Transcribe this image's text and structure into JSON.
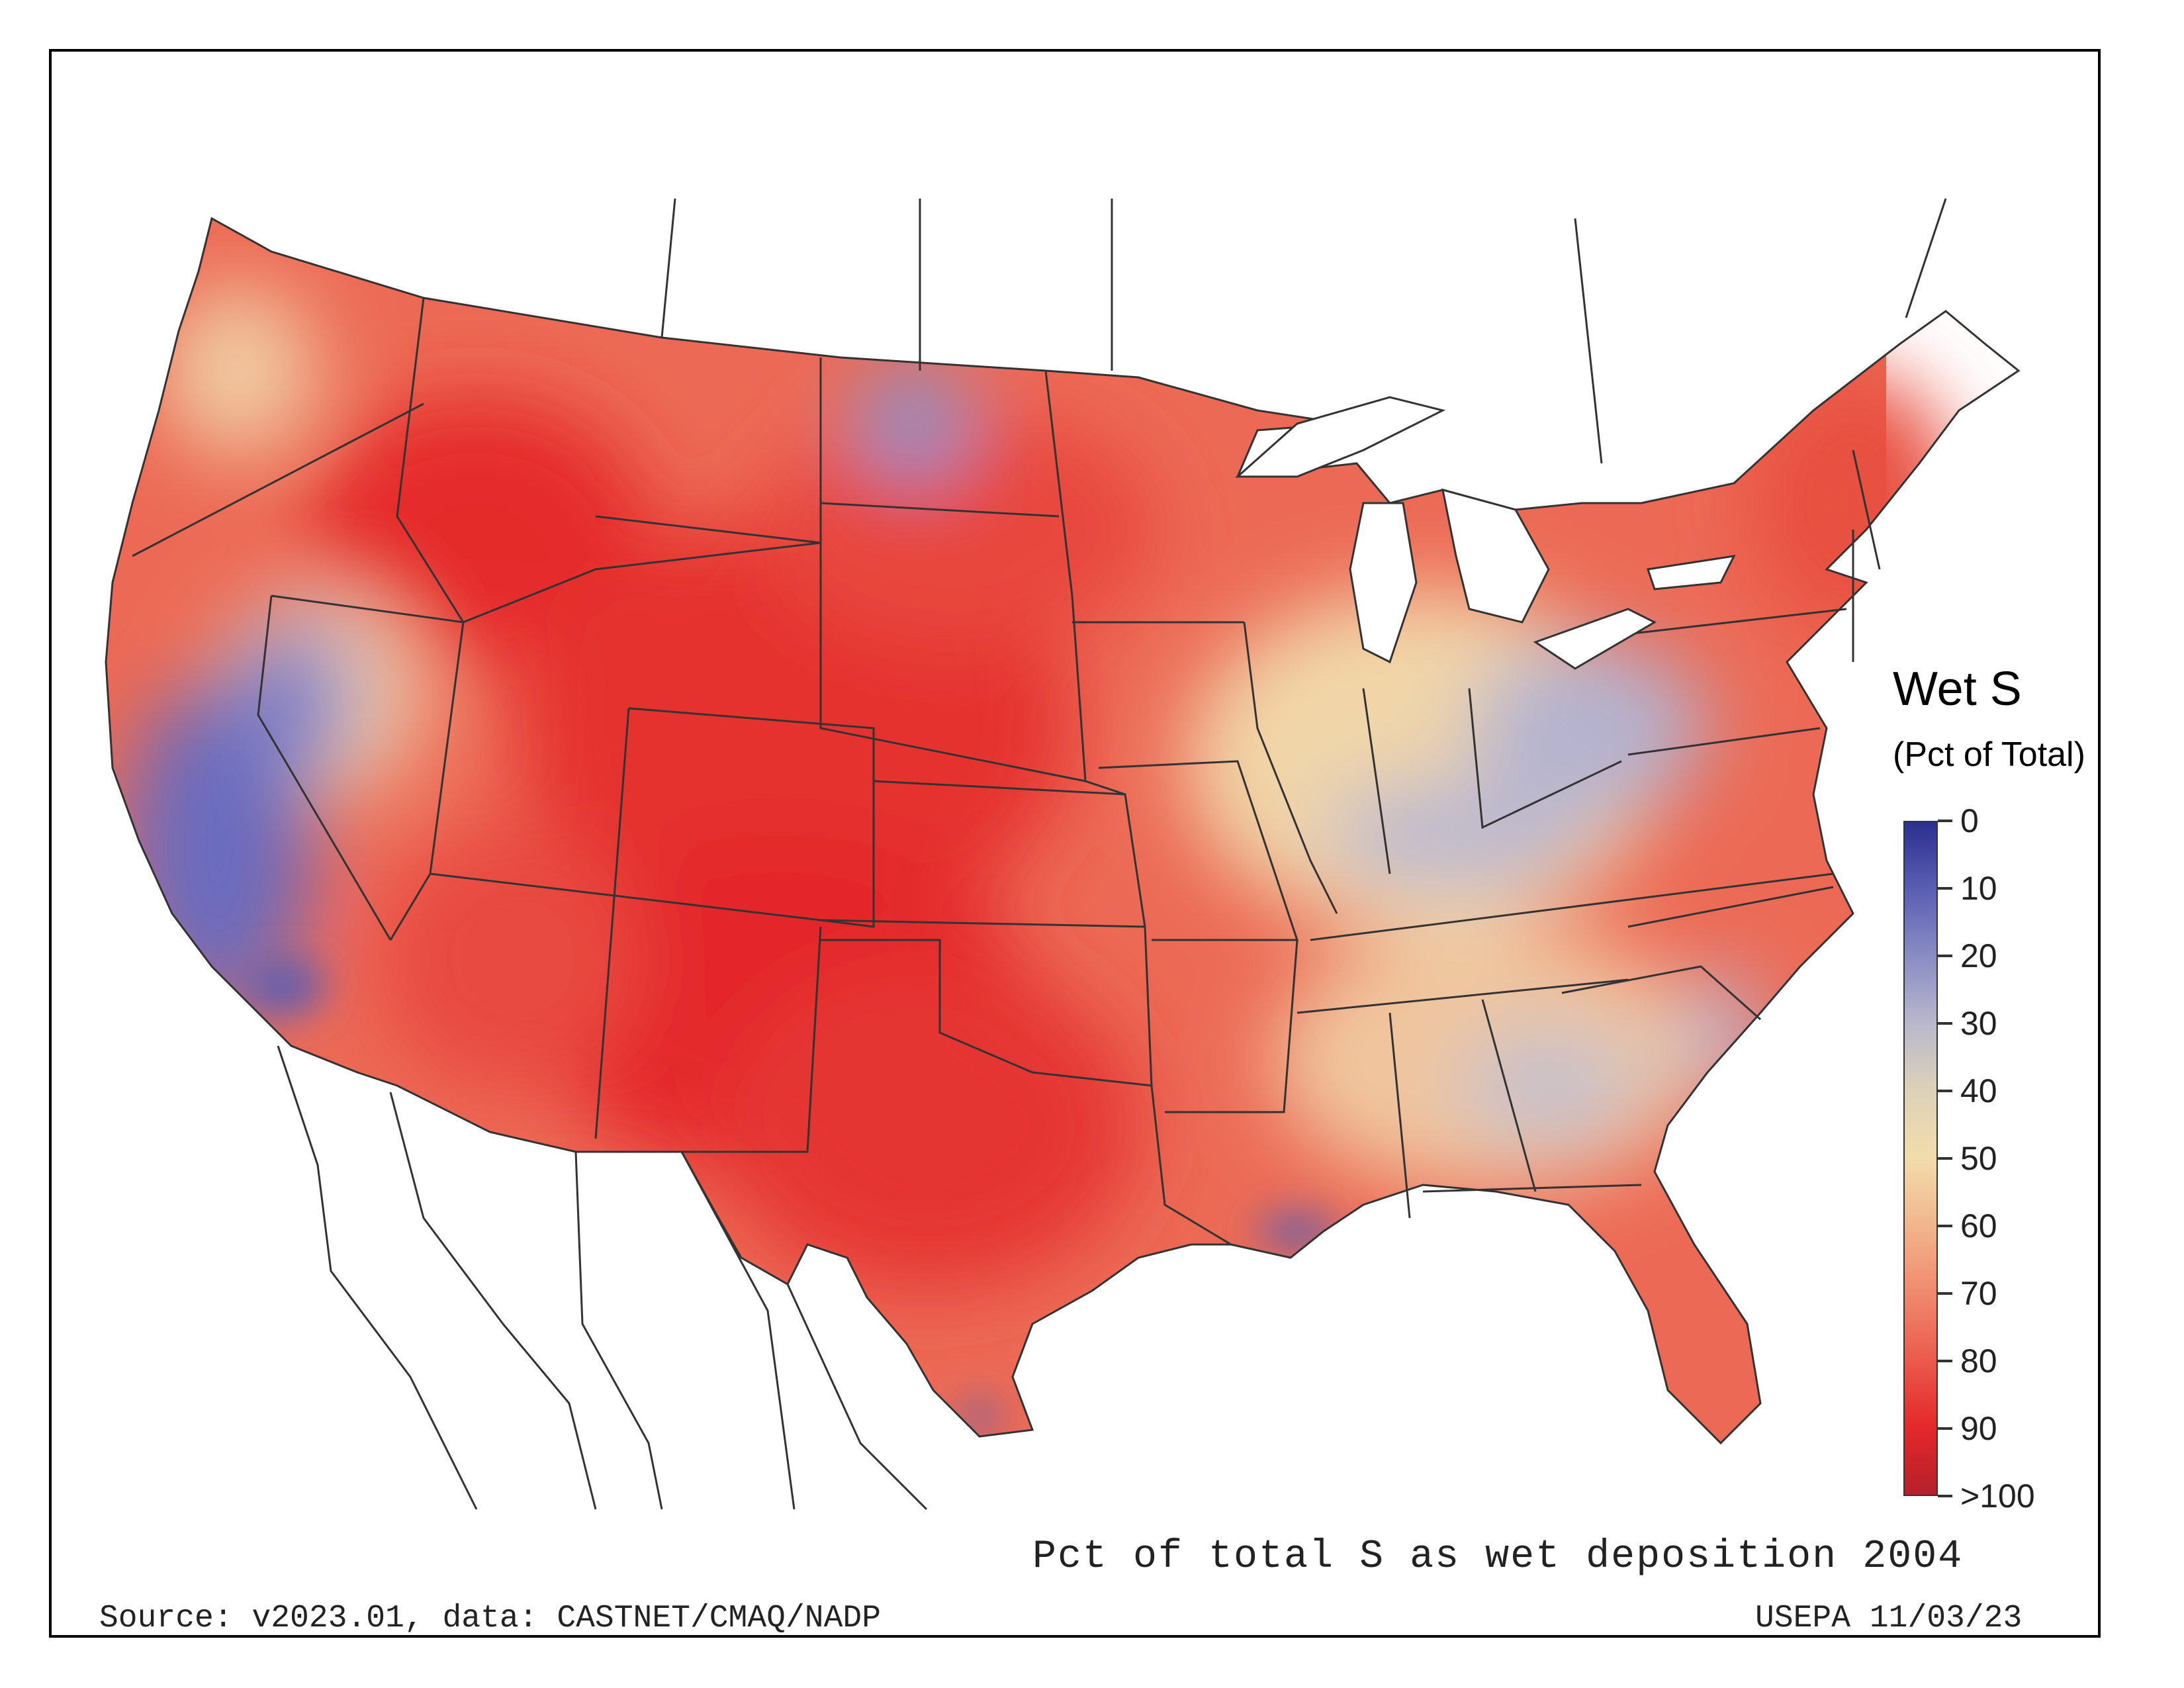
{
  "legend": {
    "title": "Wet S",
    "subtitle": "(Pct of Total)",
    "tick_labels": [
      "0",
      "10",
      "20",
      "30",
      "40",
      "50",
      "60",
      "70",
      "80",
      "90",
      ">100"
    ],
    "colors": [
      "#2b2f8f",
      "#5b5fb3",
      "#8a8cc4",
      "#b9b8cc",
      "#ddd2b8",
      "#f2dcab",
      "#f1b58d",
      "#ef8a6c",
      "#eb5a4b",
      "#e4282b",
      "#b5202a"
    ]
  },
  "captions": {
    "main": "Pct of total S as wet deposition 2004",
    "source": "Source: v2023.01, data: CASTNET/CMAQ/NADP",
    "agency": "USEPA 11/03/23"
  },
  "map": {
    "region": "conterminous-us",
    "palette": {
      "low": "#3a3fa8",
      "mid_low": "#b5b3d0",
      "mid": "#f3ddb0",
      "mid_high": "#ef9070",
      "high": "#e52a2c",
      "outline": "#333333",
      "outside": "#ffffff"
    }
  }
}
